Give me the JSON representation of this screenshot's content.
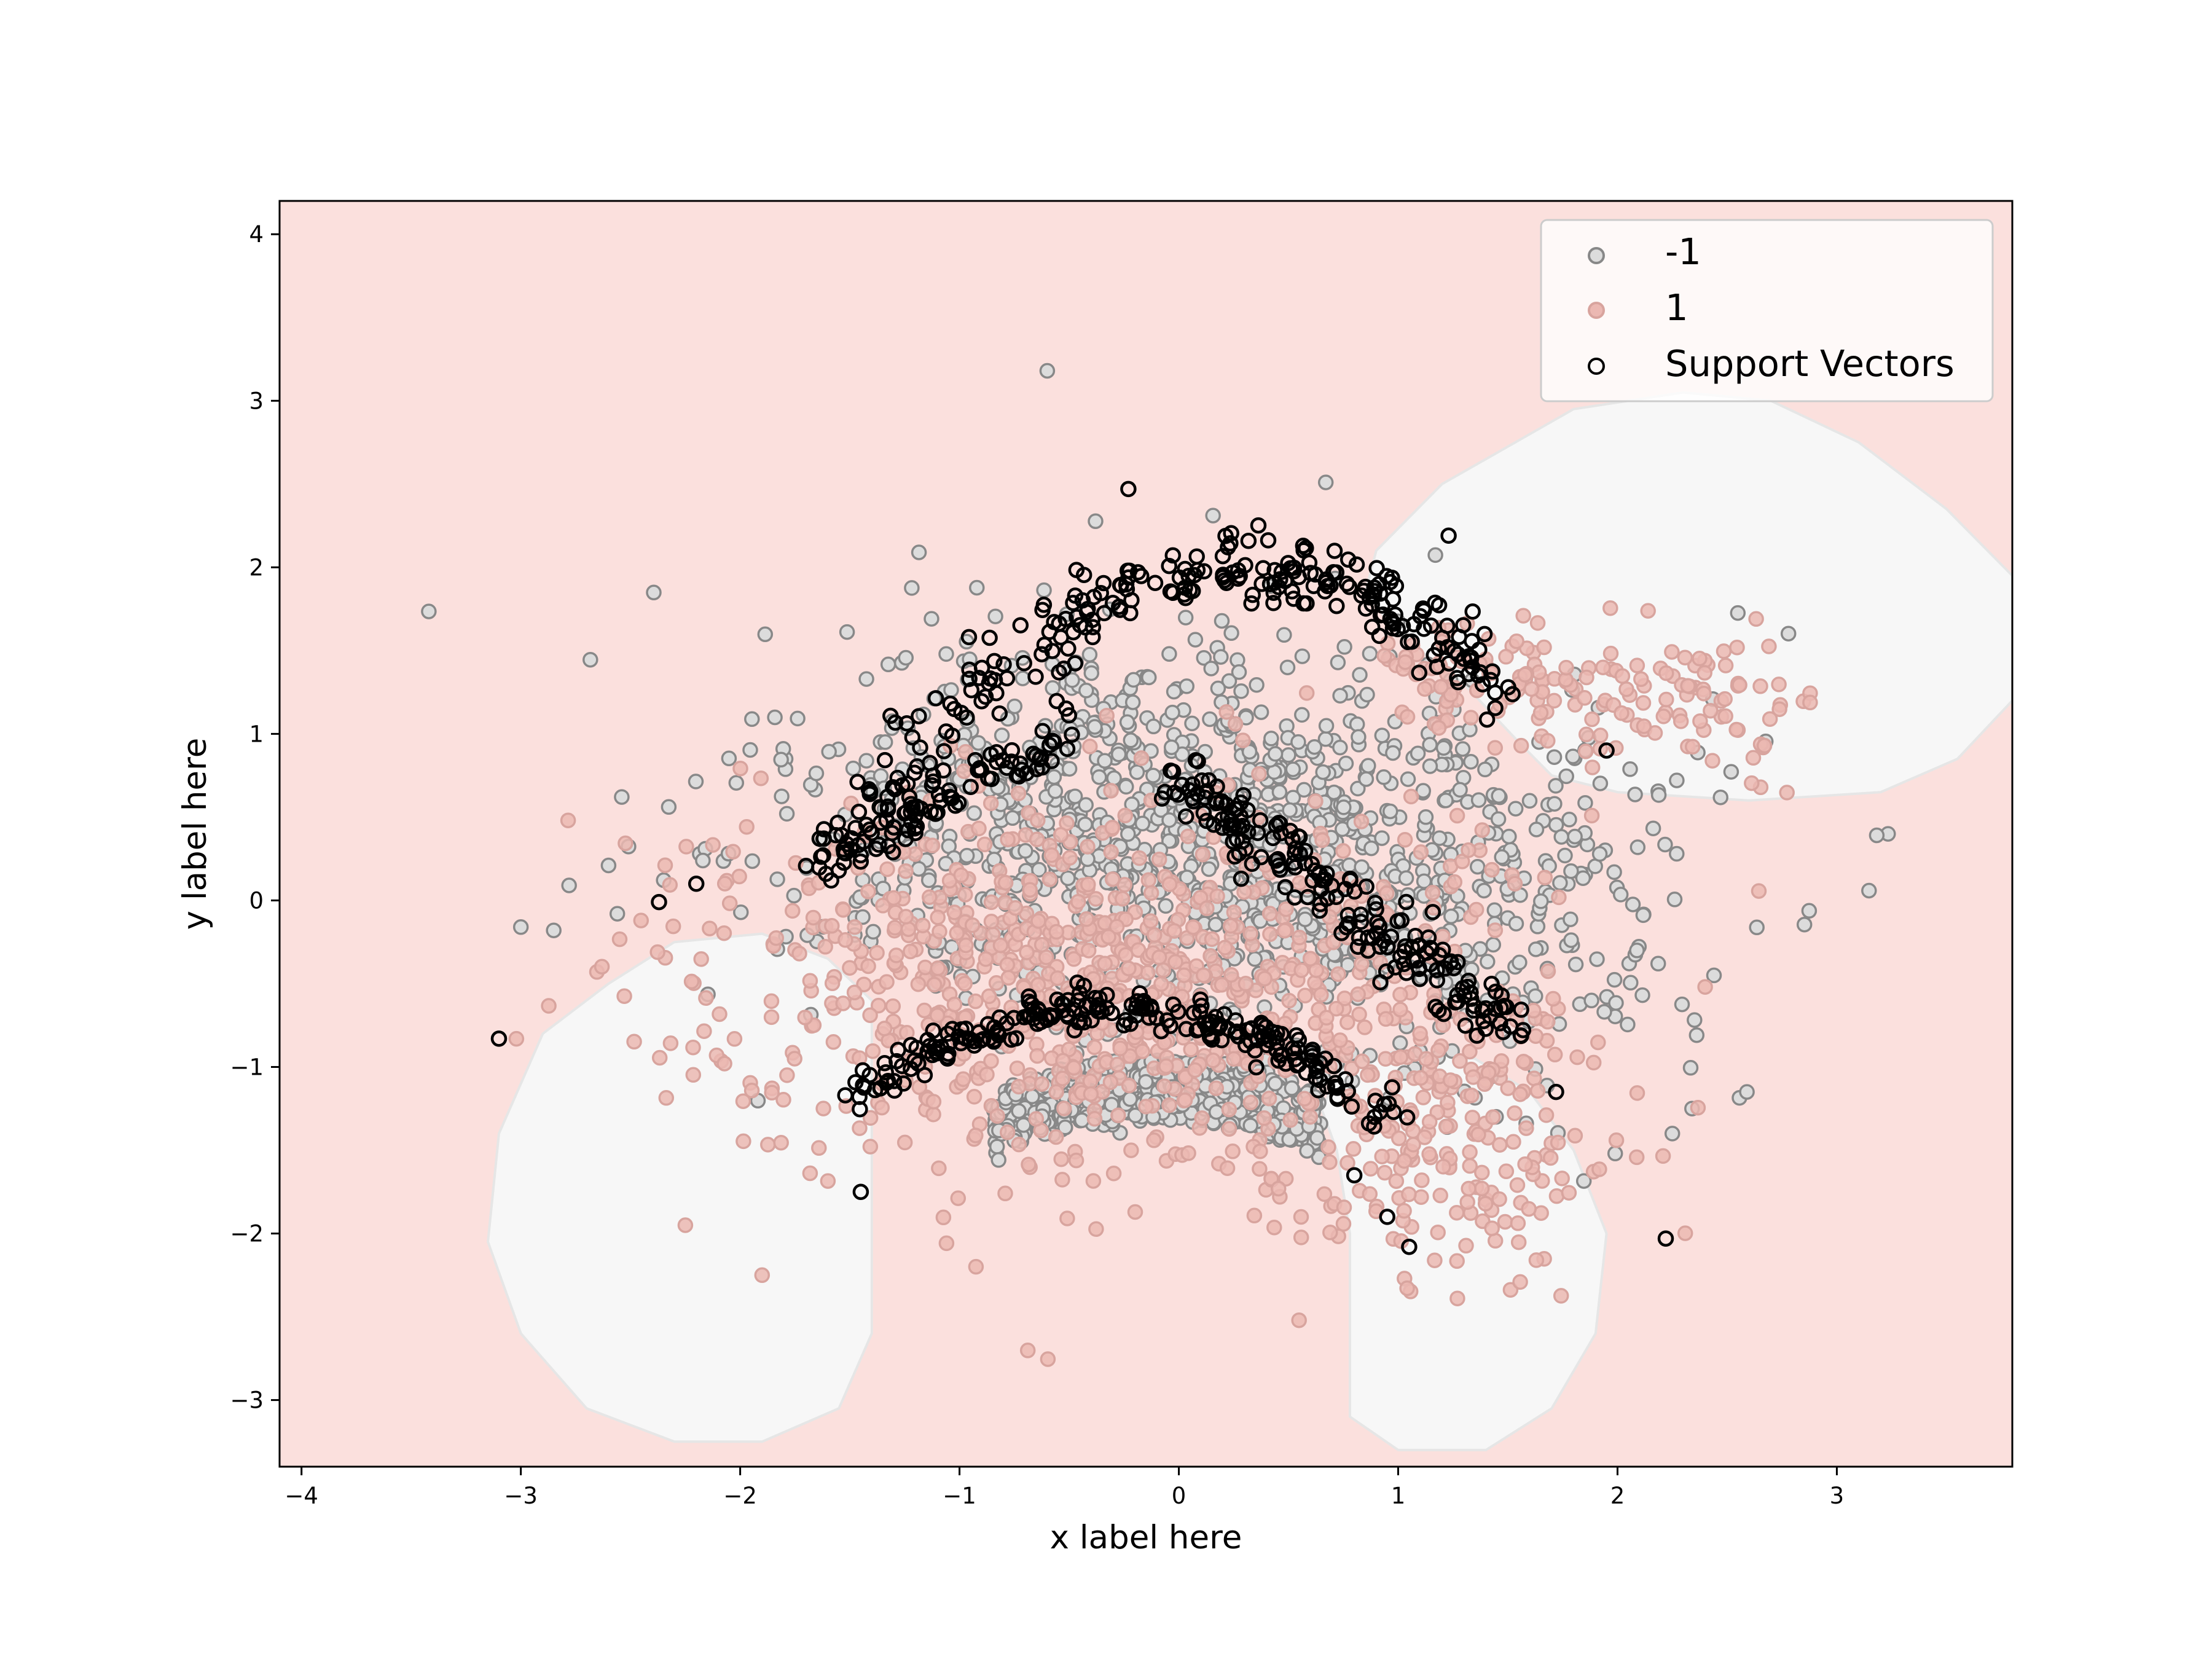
{
  "chart_data": {
    "type": "scatter",
    "title": "",
    "xlabel": "x label here",
    "ylabel": "y label here",
    "xlim": [
      -4.1,
      3.8
    ],
    "ylim": [
      -3.4,
      4.2
    ],
    "xticks": [
      {
        "value": -4,
        "label": "−4"
      },
      {
        "value": -3,
        "label": "−3"
      },
      {
        "value": -2,
        "label": "−2"
      },
      {
        "value": -1,
        "label": "−1"
      },
      {
        "value": 0,
        "label": "0"
      },
      {
        "value": 1,
        "label": "1"
      },
      {
        "value": 2,
        "label": "2"
      },
      {
        "value": 3,
        "label": "3"
      }
    ],
    "yticks": [
      {
        "value": -3,
        "label": "−3"
      },
      {
        "value": -2,
        "label": "−2"
      },
      {
        "value": -1,
        "label": "−1"
      },
      {
        "value": 0,
        "label": "0"
      },
      {
        "value": 1,
        "label": "1"
      },
      {
        "value": 2,
        "label": "2"
      },
      {
        "value": 3,
        "label": "3"
      },
      {
        "value": 4,
        "label": "4"
      }
    ],
    "grid": false,
    "legend_position": "top-right",
    "background": {
      "description": "decision regions of classifier",
      "class_1_color": "#fbe0dd",
      "class_neg1_color": "#f7f7f7",
      "neg1_regions": [
        {
          "name": "upper-right lobe",
          "polygon": [
            [
              0.9,
              2.1
            ],
            [
              1.2,
              2.5
            ],
            [
              1.8,
              2.95
            ],
            [
              2.3,
              3.05
            ],
            [
              2.7,
              3.0
            ],
            [
              3.1,
              2.75
            ],
            [
              3.5,
              2.35
            ],
            [
              3.8,
              1.95
            ],
            [
              3.8,
              1.2
            ],
            [
              3.55,
              0.85
            ],
            [
              3.2,
              0.65
            ],
            [
              2.6,
              0.6
            ],
            [
              2.0,
              0.65
            ],
            [
              1.7,
              0.75
            ],
            [
              1.55,
              0.95
            ],
            [
              1.3,
              1.3
            ],
            [
              1.0,
              1.6
            ],
            [
              0.85,
              1.85
            ]
          ]
        },
        {
          "name": "left lower lobe",
          "polygon": [
            [
              -1.4,
              -0.6
            ],
            [
              -1.4,
              -2.05
            ],
            [
              -1.4,
              -2.6
            ],
            [
              -1.55,
              -3.05
            ],
            [
              -1.9,
              -3.25
            ],
            [
              -2.3,
              -3.25
            ],
            [
              -2.7,
              -3.05
            ],
            [
              -3.0,
              -2.6
            ],
            [
              -3.15,
              -2.05
            ],
            [
              -3.1,
              -1.4
            ],
            [
              -2.9,
              -0.8
            ],
            [
              -2.6,
              -0.5
            ],
            [
              -2.3,
              -0.25
            ],
            [
              -1.9,
              -0.2
            ],
            [
              -1.6,
              -0.35
            ]
          ]
        },
        {
          "name": "right lower lobe",
          "polygon": [
            [
              0.65,
              -1.25
            ],
            [
              0.75,
              -1.0
            ],
            [
              1.0,
              -0.9
            ],
            [
              1.35,
              -0.95
            ],
            [
              1.6,
              -1.15
            ],
            [
              1.8,
              -1.5
            ],
            [
              1.95,
              -2.0
            ],
            [
              1.9,
              -2.6
            ],
            [
              1.7,
              -3.05
            ],
            [
              1.4,
              -3.3
            ],
            [
              1.0,
              -3.3
            ],
            [
              0.78,
              -3.1
            ],
            [
              0.78,
              -2.6
            ],
            [
              0.78,
              -2.0
            ],
            [
              0.72,
              -1.5
            ]
          ]
        }
      ]
    },
    "series": [
      {
        "name": "-1",
        "fill": "#dcdcdc",
        "stroke": "#888888",
        "points": []
      },
      {
        "name": "1",
        "fill": "#ebb8b2",
        "stroke": "#d8a49e",
        "points": []
      },
      {
        "name": "Support Vectors",
        "fill": "none",
        "stroke": "#000000",
        "points": []
      }
    ],
    "point_groups": [
      {
        "series": 0,
        "shape": "blob",
        "n": 1300,
        "cx": 0.2,
        "cy": 0.3,
        "sx": 0.95,
        "sy": 0.6,
        "rot": -0.15
      },
      {
        "series": 0,
        "shape": "dome",
        "n": 500,
        "cx": -0.1,
        "cy": -1.25,
        "sx": 0.75,
        "sy": 0.3
      },
      {
        "series": 1,
        "shape": "blob",
        "n": 900,
        "cx": -0.35,
        "cy": -0.5,
        "sx": 0.9,
        "sy": 0.55,
        "rot": 0.0
      },
      {
        "series": 1,
        "shape": "blob",
        "n": 220,
        "cx": 1.2,
        "cy": -1.4,
        "sx": 0.4,
        "sy": 0.45,
        "rot": 0.0
      },
      {
        "series": 1,
        "shape": "arm",
        "n": 180,
        "x0": 1.05,
        "y0": 1.45,
        "x1": 2.75,
        "y1": 1.1,
        "spread": 0.18
      },
      {
        "series": 2,
        "shape": "arc",
        "n": 260,
        "x0": -1.55,
        "y0": 0.25,
        "x1": 1.45,
        "y1": 1.25,
        "peak": 1.95,
        "spread": 0.1
      },
      {
        "series": 2,
        "shape": "arc",
        "n": 230,
        "x0": -1.5,
        "y0": -1.2,
        "x1": 0.95,
        "y1": -1.3,
        "peak": -0.65,
        "spread": 0.06
      },
      {
        "series": 2,
        "shape": "arm",
        "n": 190,
        "x0": 0.0,
        "y0": 0.75,
        "x1": 1.5,
        "y1": -0.75,
        "spread": 0.09
      },
      {
        "series": 2,
        "shape": "arm",
        "n": 90,
        "x0": -1.6,
        "y0": 0.25,
        "x1": -0.5,
        "y1": 1.0,
        "spread": 0.08
      }
    ],
    "explicit_points": [
      {
        "series": 0,
        "x": -0.6,
        "y": 3.18
      },
      {
        "series": 0,
        "x": 0.67,
        "y": 2.51
      },
      {
        "series": 0,
        "x": -3.0,
        "y": -0.16
      },
      {
        "series": 0,
        "x": -2.85,
        "y": -0.18
      },
      {
        "series": 0,
        "x": -2.78,
        "y": 0.09
      },
      {
        "series": 0,
        "x": -2.6,
        "y": 0.21
      },
      {
        "series": 0,
        "x": -2.56,
        "y": -0.08
      },
      {
        "series": 0,
        "x": 2.27,
        "y": 0.28
      },
      {
        "series": 0,
        "x": 2.44,
        "y": -0.45
      },
      {
        "series": 0,
        "x": 2.59,
        "y": -1.15
      },
      {
        "series": 0,
        "x": 2.34,
        "y": -1.25
      },
      {
        "series": 0,
        "x": 2.25,
        "y": -1.4
      },
      {
        "series": 1,
        "x": -2.25,
        "y": -1.95
      },
      {
        "series": 1,
        "x": -1.9,
        "y": -2.25
      },
      {
        "series": 1,
        "x": 1.27,
        "y": -2.39
      },
      {
        "series": 1,
        "x": 1.63,
        "y": -2.16
      },
      {
        "series": 2,
        "x": -3.1,
        "y": -0.83
      },
      {
        "series": 2,
        "x": 2.22,
        "y": -2.03
      },
      {
        "series": 2,
        "x": 1.05,
        "y": -2.08
      },
      {
        "series": 2,
        "x": -0.23,
        "y": 2.47
      },
      {
        "series": 2,
        "x": 1.23,
        "y": 2.19
      },
      {
        "series": 2,
        "x": -2.37,
        "y": -0.01
      },
      {
        "series": 2,
        "x": -2.2,
        "y": 0.1
      },
      {
        "series": 2,
        "x": 0.95,
        "y": -1.9
      },
      {
        "series": 2,
        "x": 0.8,
        "y": -1.65
      },
      {
        "series": 2,
        "x": -1.45,
        "y": -1.75
      },
      {
        "series": 2,
        "x": 1.72,
        "y": -1.15
      },
      {
        "series": 2,
        "x": 1.95,
        "y": 0.9
      }
    ]
  }
}
